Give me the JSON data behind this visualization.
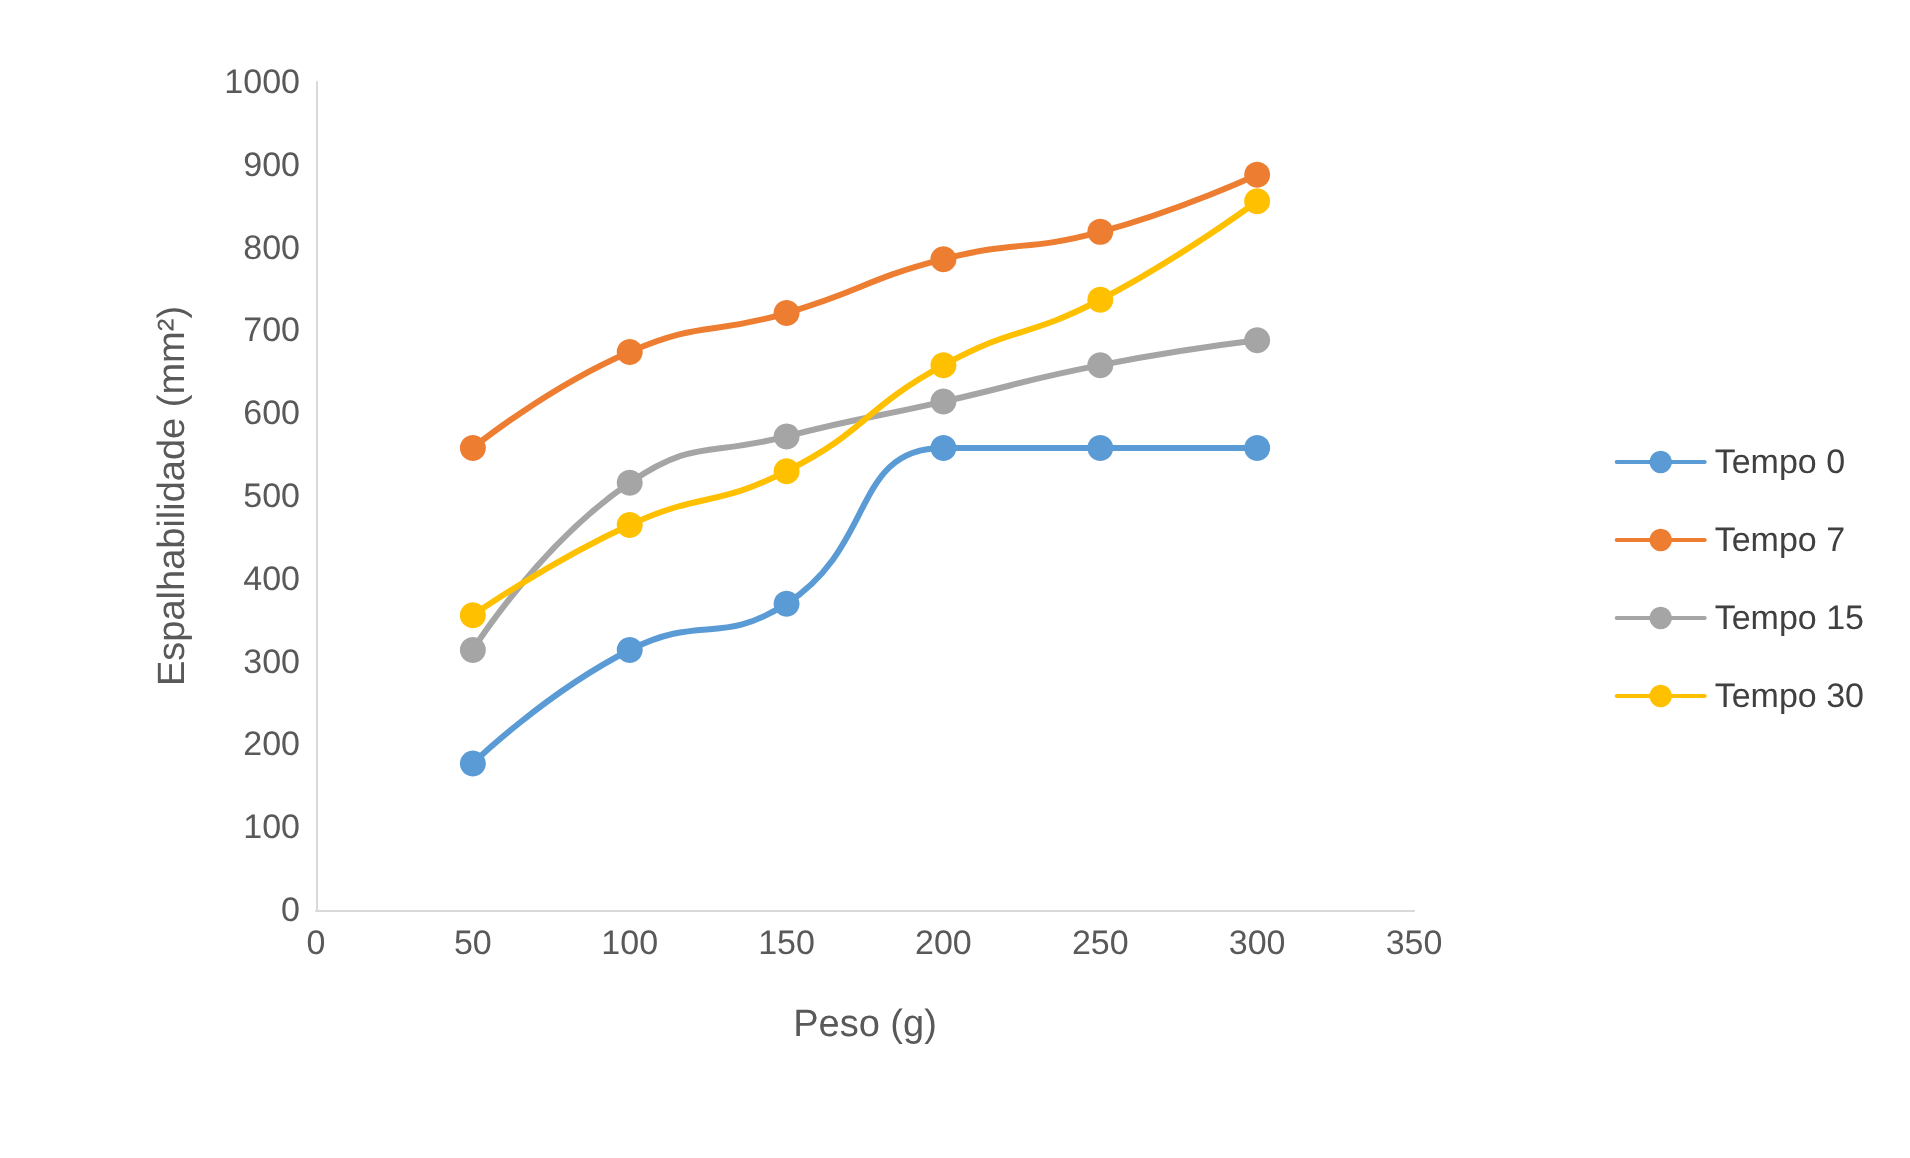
{
  "chart_data": {
    "type": "line",
    "xlabel": "Peso (g)",
    "ylabel": "Espalhabilidade (mm²)",
    "x": [
      50,
      100,
      150,
      200,
      250,
      300
    ],
    "series": [
      {
        "name": "Tempo 0",
        "color": "#5b9bd5",
        "values": [
          177,
          314,
          370,
          558,
          558,
          558
        ]
      },
      {
        "name": "Tempo 7",
        "color": "#ed7d31",
        "values": [
          558,
          674,
          721,
          786,
          819,
          888
        ]
      },
      {
        "name": "Tempo 15",
        "color": "#a5a5a5",
        "values": [
          314,
          516,
          572,
          614,
          658,
          688
        ]
      },
      {
        "name": "Tempo 30",
        "color": "#ffc000",
        "values": [
          356,
          465,
          530,
          658,
          737,
          856
        ]
      }
    ],
    "xlim": [
      0,
      350
    ],
    "xticks": [
      0,
      50,
      100,
      150,
      200,
      250,
      300,
      350
    ],
    "ylim": [
      0,
      1000
    ],
    "yticks": [
      0,
      100,
      200,
      300,
      400,
      500,
      600,
      700,
      800,
      900,
      1000
    ],
    "grid": false,
    "legend": "right",
    "marker": "circle",
    "line_style": "solid"
  }
}
